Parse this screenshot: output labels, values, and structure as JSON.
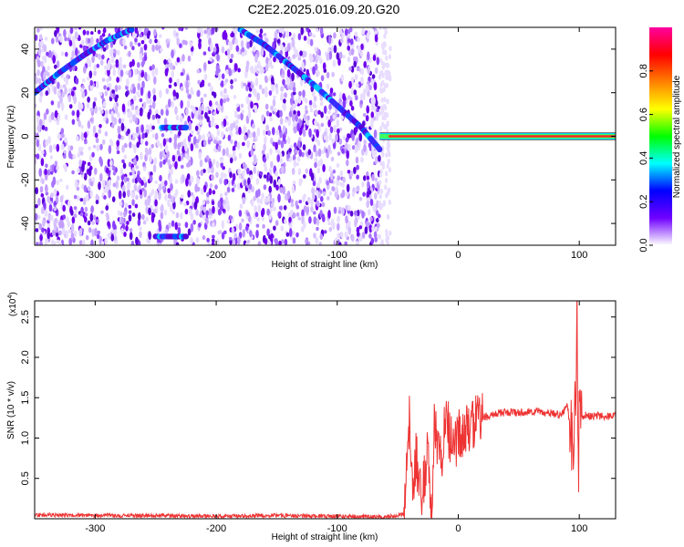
{
  "title": "C2E2.2025.016.09.20.G20",
  "chart_data": [
    {
      "type": "heatmap",
      "xlabel": "Height of straight line (km)",
      "ylabel": "Frequency (Hz)",
      "xlim": [
        -350,
        130
      ],
      "ylim": [
        -50,
        50
      ],
      "xticks": [
        -300,
        -200,
        -100,
        0,
        100
      ],
      "yticks": [
        -40,
        -20,
        0,
        20,
        40
      ],
      "colorbar": {
        "label": "Normalized spectral amplitude",
        "range": [
          0,
          1
        ],
        "ticks": [
          "0.0",
          "0.2",
          "0.4",
          "0.6",
          "0.8"
        ],
        "colormap": [
          "#ffffff",
          "#7000ff",
          "#0000ff",
          "#00ffff",
          "#00ff00",
          "#ffff00",
          "#ff8000",
          "#ff0000",
          "#ff00a0"
        ]
      },
      "features": {
        "noise_region_x": [
          -350,
          -65
        ],
        "signal_line": {
          "x": [
            -65,
            130
          ],
          "frequency_hz": 0
        },
        "curves": [
          {
            "x": [
              -350,
              -330,
              -310,
              -290,
              -270
            ],
            "frequency_hz": [
              20,
              29,
              37,
              44,
              49
            ]
          },
          {
            "x": [
              -180,
              -160,
              -140,
              -120,
              -100,
              -80,
              -65
            ],
            "frequency_hz": [
              49,
              42,
              33,
              24,
              14,
              4,
              -6
            ]
          },
          {
            "x": [
              -250,
              -225
            ],
            "frequency_hz": [
              -46,
              -46
            ]
          },
          {
            "x": [
              -245,
              -225
            ],
            "frequency_hz": [
              4,
              4
            ]
          }
        ]
      }
    },
    {
      "type": "line",
      "xlabel": "Height of straight line (km)",
      "ylabel": "SNR (10 * v/v)",
      "y_multiplier": "(x10",
      "y_multiplier_exp": "4",
      "y_multiplier_close": ")",
      "xlim": [
        -350,
        130
      ],
      "ylim": [
        0,
        2.7
      ],
      "xticks": [
        -300,
        -200,
        -100,
        0,
        100
      ],
      "yticks": [
        "0.5",
        "1.0",
        "1.5",
        "2.0",
        "2.5"
      ],
      "color": "#ee3333",
      "series": [
        {
          "x": [
            -350,
            -300,
            -250,
            -200,
            -150,
            -100,
            -60,
            -45,
            -42,
            -40,
            -38,
            -35,
            -30,
            -25,
            -22,
            -20,
            -15,
            -10,
            -5,
            0,
            10,
            20,
            30,
            40,
            50,
            60,
            70,
            80,
            85,
            90,
            95,
            97,
            98,
            99,
            100,
            102,
            110,
            120,
            130
          ],
          "values": [
            0.05,
            0.04,
            0.04,
            0.03,
            0.04,
            0.03,
            0.02,
            0.05,
            1.05,
            1.3,
            0.4,
            0.8,
            0.2,
            0.9,
            0.0,
            1.15,
            0.7,
            1.2,
            0.95,
            1.0,
            1.15,
            1.25,
            1.3,
            1.32,
            1.32,
            1.33,
            1.32,
            1.3,
            1.28,
            1.4,
            0.9,
            1.6,
            2.7,
            0.35,
            1.3,
            1.28,
            1.27,
            1.27,
            1.28
          ]
        }
      ]
    }
  ]
}
